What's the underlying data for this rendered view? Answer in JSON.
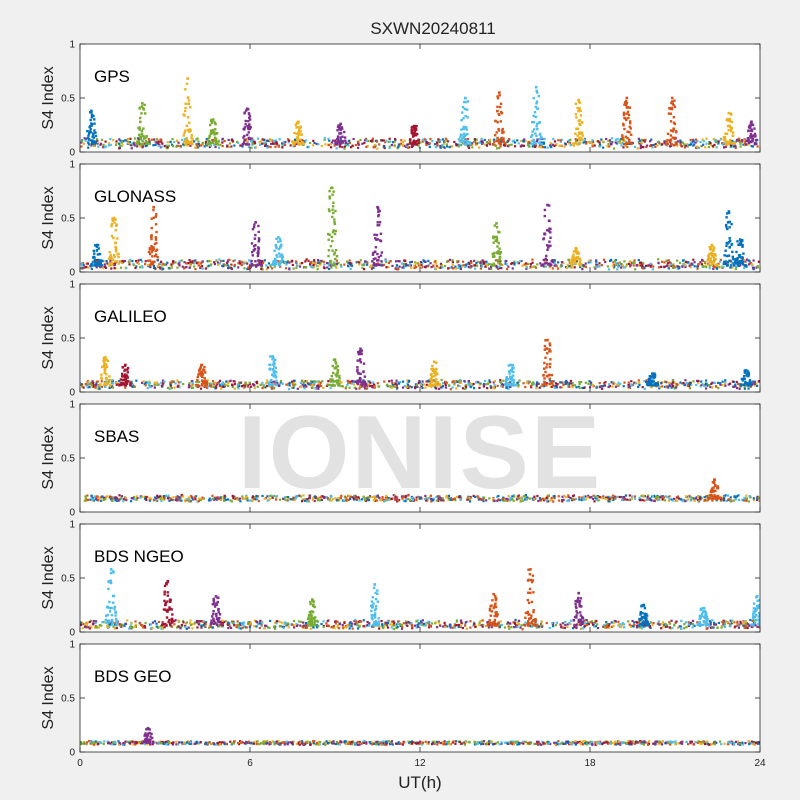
{
  "chart_data": {
    "type": "scatter",
    "title": "SXWN20240811",
    "watermark": "IONISE",
    "xlabel": "UT(h)",
    "ylabel": "S4 Index",
    "xlim": [
      0,
      24
    ],
    "ylim": [
      0,
      1
    ],
    "xticks": [
      "0",
      "6",
      "12",
      "18",
      "24"
    ],
    "yticks": [
      "0",
      "0.5",
      "1"
    ],
    "colors": [
      "#0072BD",
      "#D95319",
      "#EDB120",
      "#7E2F8E",
      "#77AC30",
      "#4DBEEE",
      "#A2142F"
    ],
    "panels": [
      {
        "label": "GPS",
        "baseline": 0.07,
        "noise": 0.04,
        "spikes": [
          {
            "x": 0.4,
            "y": 0.38,
            "color": 0
          },
          {
            "x": 2.2,
            "y": 0.45,
            "color": 4
          },
          {
            "x": 3.8,
            "y": 0.68,
            "color": 2
          },
          {
            "x": 4.7,
            "y": 0.3,
            "color": 4
          },
          {
            "x": 5.9,
            "y": 0.4,
            "color": 3
          },
          {
            "x": 7.7,
            "y": 0.28,
            "color": 2
          },
          {
            "x": 9.2,
            "y": 0.26,
            "color": 3
          },
          {
            "x": 11.8,
            "y": 0.24,
            "color": 6
          },
          {
            "x": 13.6,
            "y": 0.5,
            "color": 5
          },
          {
            "x": 14.8,
            "y": 0.55,
            "color": 1
          },
          {
            "x": 16.1,
            "y": 0.6,
            "color": 5
          },
          {
            "x": 17.6,
            "y": 0.48,
            "color": 2
          },
          {
            "x": 19.3,
            "y": 0.5,
            "color": 1
          },
          {
            "x": 20.9,
            "y": 0.5,
            "color": 1
          },
          {
            "x": 22.9,
            "y": 0.36,
            "color": 2
          },
          {
            "x": 23.7,
            "y": 0.28,
            "color": 3
          }
        ]
      },
      {
        "label": "GLONASS",
        "baseline": 0.06,
        "noise": 0.04,
        "spikes": [
          {
            "x": 0.6,
            "y": 0.25,
            "color": 0
          },
          {
            "x": 1.2,
            "y": 0.5,
            "color": 2
          },
          {
            "x": 2.6,
            "y": 0.6,
            "color": 1
          },
          {
            "x": 6.2,
            "y": 0.46,
            "color": 3
          },
          {
            "x": 7.0,
            "y": 0.32,
            "color": 5
          },
          {
            "x": 8.9,
            "y": 0.78,
            "color": 4
          },
          {
            "x": 10.5,
            "y": 0.6,
            "color": 3
          },
          {
            "x": 14.7,
            "y": 0.45,
            "color": 4
          },
          {
            "x": 16.5,
            "y": 0.62,
            "color": 3
          },
          {
            "x": 17.5,
            "y": 0.22,
            "color": 2
          },
          {
            "x": 22.3,
            "y": 0.25,
            "color": 2
          },
          {
            "x": 22.9,
            "y": 0.56,
            "color": 0
          },
          {
            "x": 23.3,
            "y": 0.3,
            "color": 0
          }
        ]
      },
      {
        "label": "GALILEO",
        "baseline": 0.06,
        "noise": 0.035,
        "spikes": [
          {
            "x": 0.9,
            "y": 0.32,
            "color": 2
          },
          {
            "x": 1.6,
            "y": 0.25,
            "color": 6
          },
          {
            "x": 4.3,
            "y": 0.25,
            "color": 1
          },
          {
            "x": 6.8,
            "y": 0.33,
            "color": 5
          },
          {
            "x": 9.0,
            "y": 0.3,
            "color": 4
          },
          {
            "x": 9.9,
            "y": 0.4,
            "color": 3
          },
          {
            "x": 12.5,
            "y": 0.28,
            "color": 2
          },
          {
            "x": 15.2,
            "y": 0.25,
            "color": 5
          },
          {
            "x": 16.5,
            "y": 0.48,
            "color": 1
          },
          {
            "x": 20.2,
            "y": 0.17,
            "color": 0
          },
          {
            "x": 23.5,
            "y": 0.2,
            "color": 0
          }
        ]
      },
      {
        "label": "SBAS",
        "baseline": 0.12,
        "noise": 0.025,
        "spikes": [
          {
            "x": 22.4,
            "y": 0.3,
            "color": 1
          }
        ]
      },
      {
        "label": "BDS NGEO",
        "baseline": 0.06,
        "noise": 0.035,
        "spikes": [
          {
            "x": 1.1,
            "y": 0.58,
            "color": 5
          },
          {
            "x": 3.1,
            "y": 0.47,
            "color": 6
          },
          {
            "x": 4.8,
            "y": 0.33,
            "color": 3
          },
          {
            "x": 8.2,
            "y": 0.3,
            "color": 4
          },
          {
            "x": 10.4,
            "y": 0.44,
            "color": 5
          },
          {
            "x": 14.6,
            "y": 0.35,
            "color": 1
          },
          {
            "x": 15.9,
            "y": 0.58,
            "color": 1
          },
          {
            "x": 17.6,
            "y": 0.36,
            "color": 3
          },
          {
            "x": 19.9,
            "y": 0.25,
            "color": 0
          },
          {
            "x": 22.0,
            "y": 0.22,
            "color": 5
          },
          {
            "x": 23.9,
            "y": 0.33,
            "color": 5
          }
        ]
      },
      {
        "label": "BDS GEO",
        "baseline": 0.08,
        "noise": 0.015,
        "spikes": [
          {
            "x": 2.4,
            "y": 0.22,
            "color": 3
          }
        ]
      }
    ]
  }
}
